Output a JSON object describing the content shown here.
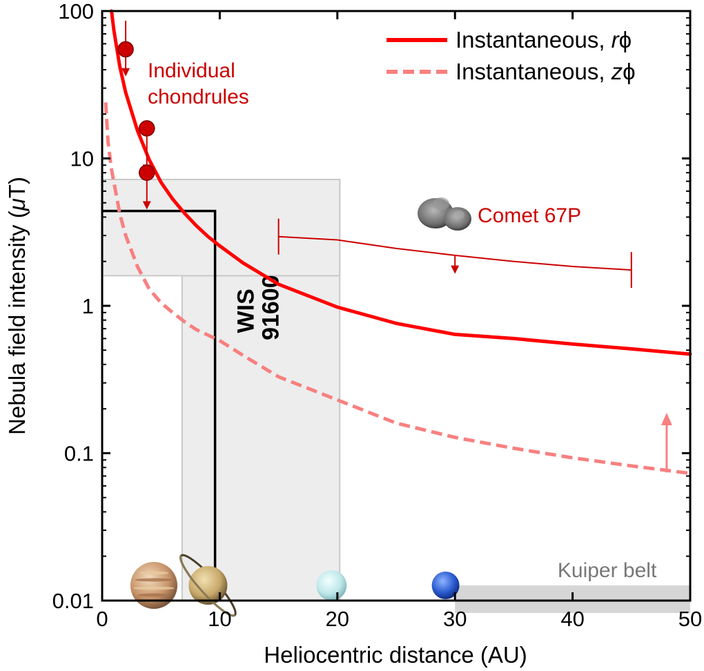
{
  "chart_data": {
    "type": "line",
    "xlabel": "Heliocentric distance (AU)",
    "ylabel_main": "Nebula field intensity (",
    "ylabel_mu": "μ",
    "ylabel_end": "T)",
    "xlim": [
      0,
      50
    ],
    "ylim": [
      0.01,
      100
    ],
    "yscale": "log",
    "xticks": [
      0,
      10,
      20,
      30,
      40,
      50
    ],
    "xtick_labels": [
      "0",
      "10",
      "20",
      "30",
      "40",
      "50"
    ],
    "yticks": [
      0.01,
      0.1,
      1,
      10,
      100
    ],
    "ytick_labels": [
      "0.01",
      "0.1",
      "1",
      "10",
      "100"
    ],
    "grid": false,
    "legend_position": "top-right",
    "series": [
      {
        "name": "Instantaneous, rϕ",
        "legend_text": "Instantaneous, ",
        "legend_italic": "r",
        "legend_symbol": "ϕ",
        "style": "solid",
        "color": "#ff0000",
        "x": [
          0.8,
          1,
          1.5,
          2,
          3,
          4,
          5,
          6,
          7,
          8,
          9,
          10,
          12,
          15,
          20,
          25,
          30,
          35,
          40,
          45,
          50
        ],
        "y": [
          100,
          74,
          42,
          28,
          15.5,
          9.8,
          6.9,
          5.3,
          4.25,
          3.5,
          2.95,
          2.55,
          1.95,
          1.4,
          0.98,
          0.76,
          0.64,
          0.6,
          0.55,
          0.51,
          0.47
        ]
      },
      {
        "name": "Instantaneous, zϕ",
        "legend_text": "Instantaneous, ",
        "legend_italic": "z",
        "legend_symbol": "ϕ",
        "style": "dashed",
        "color": "#f88080",
        "x": [
          0.3,
          0.5,
          0.8,
          1,
          1.5,
          2,
          3,
          4,
          5,
          6,
          7,
          8,
          10,
          12,
          15,
          20,
          25,
          30,
          35,
          40,
          45,
          50
        ],
        "y": [
          24,
          13,
          8.4,
          6.9,
          4.2,
          3.0,
          1.85,
          1.3,
          1.05,
          0.9,
          0.78,
          0.69,
          0.58,
          0.46,
          0.33,
          0.23,
          0.16,
          0.128,
          0.108,
          0.093,
          0.082,
          0.073
        ]
      }
    ],
    "chondrules": {
      "label_line1": "Individual",
      "label_line2": "chondrules",
      "color": "#cc0000",
      "points": [
        {
          "x": 2,
          "y": 55,
          "xerr": 0.6,
          "arrow_top": 86,
          "arrow_bottom": 36
        },
        {
          "x": 3.8,
          "y": 16,
          "xerr": 0.7,
          "arrow_top": null,
          "arrow_bottom": 8
        },
        {
          "x": 3.8,
          "y": 8,
          "xerr": 0.7,
          "arrow_top": null,
          "arrow_bottom": 4.5
        }
      ]
    },
    "comet": {
      "label": "Comet 67P",
      "color": "#cc0000",
      "x": [
        15,
        20,
        25,
        30,
        35,
        40,
        45
      ],
      "y": [
        2.95,
        2.8,
        2.45,
        2.2,
        2.0,
        1.85,
        1.75
      ],
      "arrow_x": 30,
      "arrow_y_top": 2.2,
      "arrow_y_bottom": 1.65
    },
    "wis91600": {
      "label_line1": "WIS",
      "label_line2": "91600",
      "x": 9.6,
      "y": 4.4,
      "band_x": [
        6.8,
        20.2
      ],
      "band_y": [
        1.6,
        7.2
      ]
    },
    "kuiper_belt": {
      "label": "Kuiper belt",
      "x_start": 30,
      "x_end": 50
    },
    "zphi_arrow": {
      "x": 48,
      "y_bottom": 0.074,
      "y_top": 0.18
    },
    "planets": [
      {
        "name": "jupiter",
        "x": 4.4
      },
      {
        "name": "saturn",
        "x": 9.0
      },
      {
        "name": "uranus",
        "x": 19.5
      },
      {
        "name": "neptune",
        "x": 29.2
      }
    ]
  }
}
